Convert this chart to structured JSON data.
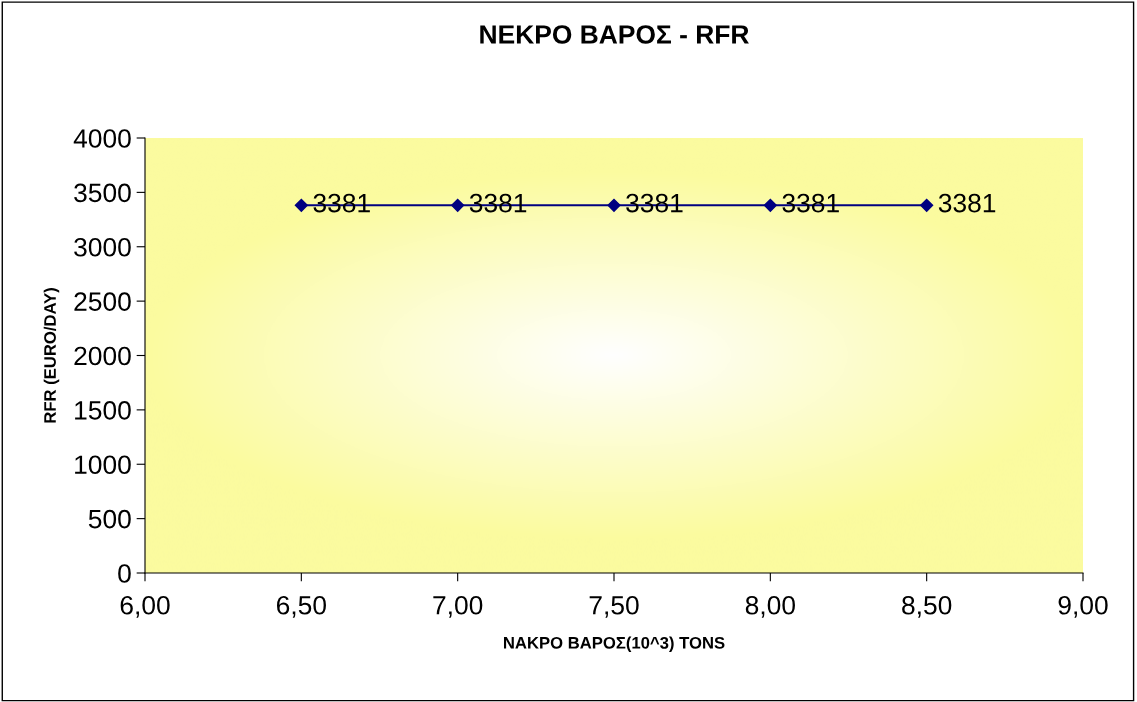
{
  "chart_data": {
    "type": "line",
    "title": "ΝΕΚΡΟ ΒΑΡΟΣ - RFR",
    "xlabel": "ΝΑΚΡΟ ΒΑΡΟΣ(10^3) TONS",
    "ylabel": "RFR (EURO/DAY)",
    "x": [
      6.5,
      7,
      7.5,
      8,
      8.5
    ],
    "series": [
      {
        "color": "#000080",
        "values": [
          3381,
          3381,
          3381,
          3381,
          3381
        ]
      }
    ],
    "data_labels": true,
    "marker": "diamond",
    "line_style": "solid",
    "grid": false,
    "legend": false,
    "xlim": [
      6,
      9
    ],
    "xticks": [
      {
        "value": 6,
        "label": "6,00"
      },
      {
        "value": 6.5,
        "label": "6,50"
      },
      {
        "value": 7,
        "label": "7,00"
      },
      {
        "value": 7.5,
        "label": "7,50"
      },
      {
        "value": 8,
        "label": "8,00"
      },
      {
        "value": 8.5,
        "label": "8,50"
      },
      {
        "value": 9,
        "label": "9,00"
      }
    ],
    "ylim": [
      0,
      4000
    ],
    "yticks": [
      0,
      500,
      1000,
      1500,
      2000,
      2500,
      3000,
      3500,
      4000
    ]
  }
}
